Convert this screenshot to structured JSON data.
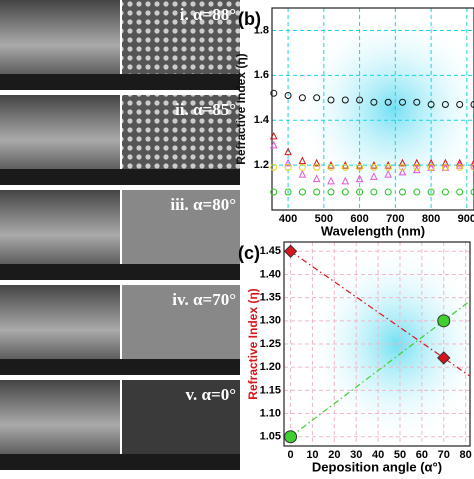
{
  "sem_panels": [
    {
      "label": "i. α=88°"
    },
    {
      "label": "ii. α=85°"
    },
    {
      "label": "iii. α=80°"
    },
    {
      "label": "iv. α=70°"
    },
    {
      "label": "v. α=0°"
    }
  ],
  "chart_data": [
    {
      "type": "scatter",
      "panel_label": "(b)",
      "xlabel": "Wavelength (nm)",
      "ylabel": "Refractive Index (η)",
      "x": [
        360,
        400,
        440,
        480,
        520,
        560,
        600,
        640,
        680,
        720,
        760,
        800,
        840,
        880,
        920
      ],
      "xlim": [
        355,
        920
      ],
      "xticks": [
        400,
        500,
        600,
        700,
        800,
        900
      ],
      "ylim": [
        1.0,
        1.9
      ],
      "yticks": [
        1.2,
        1.4,
        1.6,
        1.8
      ],
      "grid": true,
      "grid_color": "#19d3e6",
      "series": [
        {
          "color": "#111111",
          "marker": "circle",
          "values": [
            1.52,
            1.51,
            1.5,
            1.5,
            1.49,
            1.49,
            1.49,
            1.48,
            1.48,
            1.48,
            1.48,
            1.47,
            1.47,
            1.47,
            1.47
          ]
        },
        {
          "color": "#d8151b",
          "marker": "triangle",
          "values": [
            1.33,
            1.26,
            1.22,
            1.21,
            1.2,
            1.2,
            1.2,
            1.2,
            1.2,
            1.21,
            1.21,
            1.21,
            1.21,
            1.21,
            1.21
          ]
        },
        {
          "color": "#e653d6",
          "marker": "triangle",
          "values": [
            1.29,
            1.21,
            1.16,
            1.14,
            1.13,
            1.13,
            1.14,
            1.15,
            1.16,
            1.17,
            1.18,
            1.19,
            1.19,
            1.2,
            1.2
          ]
        },
        {
          "color": "#e8d21d",
          "marker": "circle",
          "values": [
            1.19,
            1.19,
            1.19,
            1.19,
            1.19,
            1.19,
            1.19,
            1.19,
            1.19,
            1.19,
            1.19,
            1.19,
            1.19,
            1.19,
            1.19
          ]
        },
        {
          "color": "#22c21e",
          "marker": "circle",
          "values": [
            1.08,
            1.08,
            1.08,
            1.08,
            1.08,
            1.08,
            1.08,
            1.08,
            1.08,
            1.08,
            1.08,
            1.08,
            1.08,
            1.08,
            1.08
          ]
        }
      ]
    },
    {
      "type": "scatter",
      "panel_label": "(c)",
      "xlabel": "Deposition angle (α°)",
      "ylabel": "Refractive Index (η)",
      "ylabel_color": "#d8151b",
      "x": [
        0,
        70
      ],
      "xlim": [
        -3,
        82
      ],
      "xticks": [
        0,
        10,
        20,
        30,
        40,
        50,
        60,
        70,
        80
      ],
      "ylim": [
        1.03,
        1.47
      ],
      "yticks": [
        1.05,
        {
          "value": 1.1,
          "label": "1.10"
        },
        1.15,
        {
          "value": 1.2,
          "label": "1.20"
        },
        1.25,
        {
          "value": 1.3,
          "label": "1.30"
        },
        1.35,
        {
          "value": 1.4,
          "label": "1.40"
        },
        1.45
      ],
      "grid": true,
      "grid_color": "#f0b8c8",
      "series": [
        {
          "color": "#d8151b",
          "marker": "diamond",
          "line": "dashdot",
          "values": [
            1.45,
            1.22
          ]
        },
        {
          "color": "#3fcf2f",
          "marker": "circle",
          "line": "dashdot",
          "values": [
            1.05,
            1.3
          ]
        }
      ]
    }
  ]
}
